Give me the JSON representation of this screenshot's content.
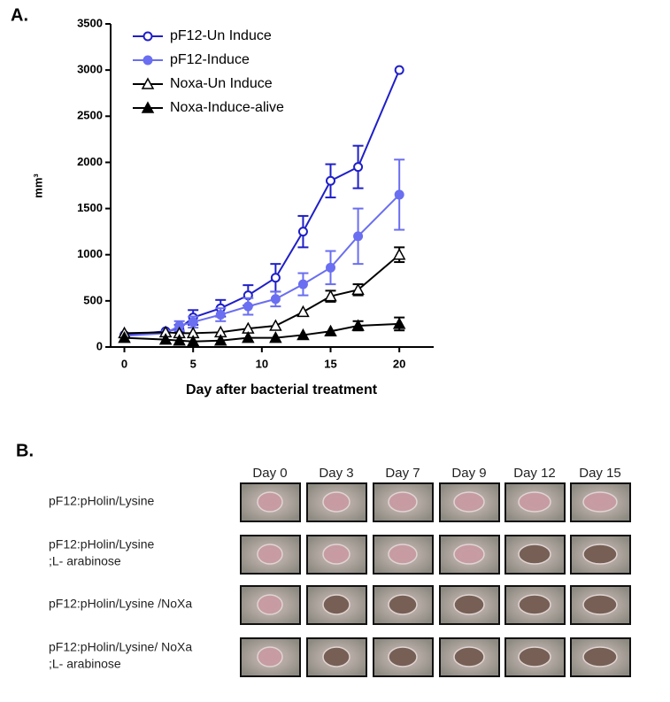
{
  "panel_a_label": "A.",
  "chart_data": {
    "type": "line",
    "x_label": "Day after bacterial treatment",
    "y_label": "mm³",
    "x": [
      0,
      3,
      4,
      5,
      7,
      9,
      11,
      13,
      15,
      17,
      20
    ],
    "xlim": [
      -1,
      22.5
    ],
    "xticks": [
      0,
      5,
      10,
      15,
      20
    ],
    "ylim": [
      0,
      3500
    ],
    "yticks": [
      0,
      500,
      1000,
      1500,
      2000,
      2500,
      3000,
      3500
    ],
    "legend": "upper left",
    "series": [
      {
        "name": "pF12-Un Induce",
        "color": "#1f1fc8",
        "marker": "circle",
        "filled": false,
        "values": [
          130,
          170,
          200,
          320,
          420,
          560,
          750,
          1250,
          1800,
          1950,
          3000
        ],
        "errors": [
          0,
          0,
          40,
          80,
          90,
          110,
          150,
          170,
          180,
          230,
          0
        ]
      },
      {
        "name": "pF12-Induce",
        "color": "#6a6ef0",
        "marker": "circle",
        "filled": true,
        "values": [
          120,
          150,
          230,
          270,
          350,
          440,
          520,
          680,
          860,
          1200,
          1650
        ],
        "errors": [
          0,
          0,
          50,
          60,
          70,
          90,
          80,
          120,
          180,
          300,
          380
        ]
      },
      {
        "name": "Noxa-Un Induce",
        "color": "#000000",
        "marker": "triangle",
        "filled": false,
        "values": [
          150,
          160,
          150,
          150,
          160,
          200,
          230,
          380,
          550,
          620,
          1000
        ],
        "errors": [
          0,
          0,
          0,
          0,
          0,
          0,
          0,
          0,
          60,
          60,
          80
        ]
      },
      {
        "name": "Noxa-Induce-alive",
        "color": "#000000",
        "marker": "triangle",
        "filled": true,
        "values": [
          100,
          80,
          70,
          60,
          70,
          100,
          100,
          130,
          170,
          230,
          250
        ],
        "errors": [
          0,
          0,
          0,
          0,
          0,
          0,
          0,
          0,
          0,
          50,
          70
        ]
      }
    ]
  },
  "panel_b": {
    "label": "B.",
    "columns": [
      "Day 0",
      "Day 3",
      "Day 7",
      "Day 9",
      "Day 12",
      "Day 15"
    ],
    "rows": [
      [
        "pF12:pHolin/Lysine"
      ],
      [
        "pF12:pHolin/Lysine",
        ";L- arabinose"
      ],
      [
        "pF12:pHolin/Lysine /NoXa"
      ],
      [
        "pF12:pHolin/Lysine/ NoXa",
        ";L- arabinose"
      ]
    ]
  }
}
